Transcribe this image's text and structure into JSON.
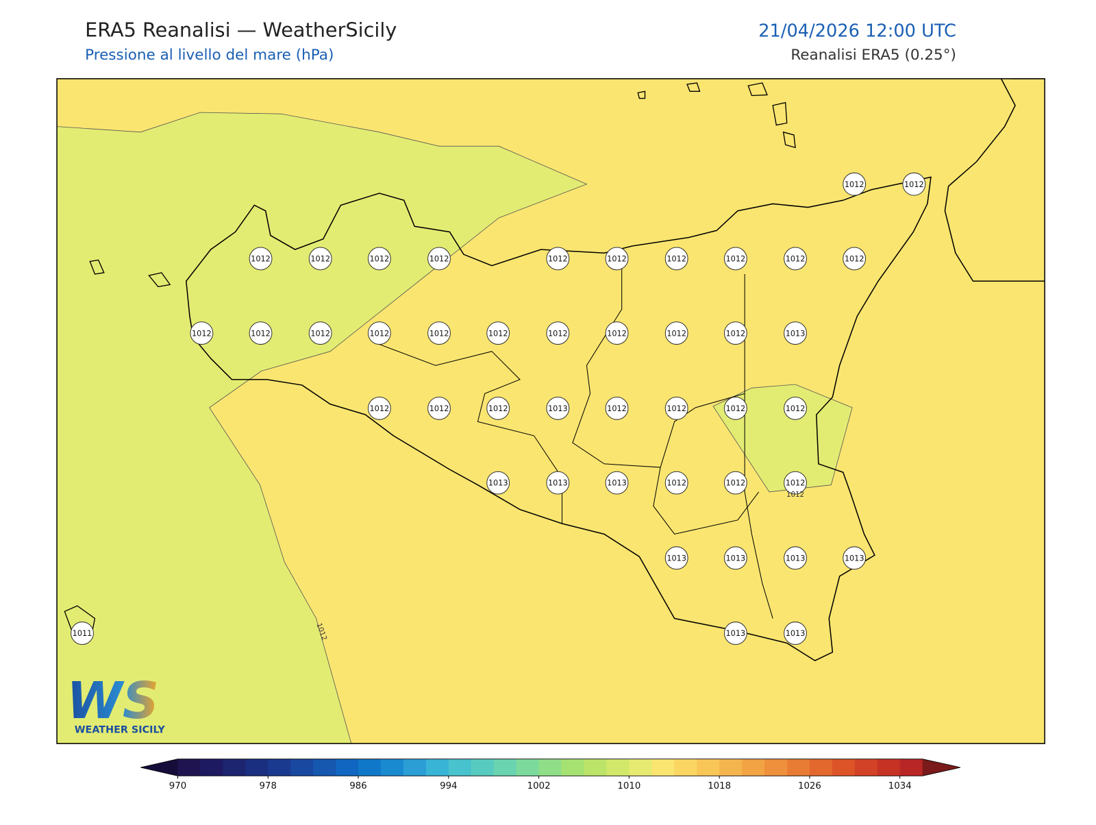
{
  "header": {
    "title": "ERA5 Reanalisi — WeatherSicily",
    "subtitle": "Pressione al livello del mare (hPa)",
    "datetime": "21/04/2026 12:00 UTC",
    "source": "Reanalisi ERA5 (0.25°)"
  },
  "map": {
    "station_values": [
      1012,
      1012,
      1012,
      1012,
      1012,
      1012,
      1012,
      1012,
      1012,
      1012,
      1012,
      1012,
      1012,
      1012,
      1012,
      1012,
      1012,
      1012,
      1012,
      1012,
      1012,
      1012,
      1013,
      1012,
      1012,
      1012,
      1013,
      1012,
      1012,
      1012,
      1012,
      1013,
      1013,
      1013,
      1012,
      1012,
      1012,
      1013,
      1013,
      1013,
      1013,
      1013,
      1013,
      1011
    ],
    "contour_labels": [
      1012,
      1012
    ]
  },
  "logo": {
    "mark": "WS",
    "name": "WEATHER SICILY"
  },
  "colorbar": {
    "range": [
      970,
      1036
    ],
    "ticks": [
      970,
      978,
      986,
      994,
      1002,
      1010,
      1018,
      1026,
      1034
    ],
    "colors": [
      "#201450",
      "#1e1a62",
      "#1d2470",
      "#1b2f80",
      "#1a3a8f",
      "#1848a0",
      "#1657b0",
      "#1066c0",
      "#0f78c8",
      "#1a8ad0",
      "#2a9ed5",
      "#38b4d6",
      "#48c2cc",
      "#58cbc0",
      "#6ad3b0",
      "#7cda9c",
      "#90de88",
      "#a6e272",
      "#bce468",
      "#d2e86a",
      "#e6ea70",
      "#fae570",
      "#fbd662",
      "#f8c657",
      "#f5b54e",
      "#f2a344",
      "#ee903c",
      "#e97c34",
      "#e3682e",
      "#dc5428",
      "#d24226",
      "#c63224",
      "#b82626"
    ],
    "under_color": "#170d3a",
    "over_color": "#7a1a1a"
  }
}
